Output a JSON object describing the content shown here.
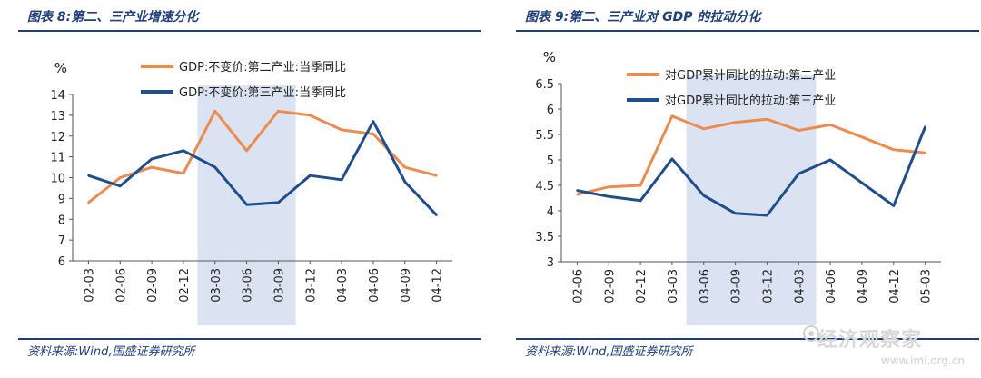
{
  "left": {
    "title": "图表 8:第二、三产业增速分化",
    "source": "资料来源:Wind,国盛证券研究所"
  },
  "right": {
    "title": "图表 9:第二、三产业对 GDP 的拉动分化",
    "source": "资料来源:Wind,国盛证券研究所"
  },
  "watermark": {
    "text": "经济观察家",
    "url": "www.imi.org.cn"
  },
  "colors": {
    "orange": "#ed8b4f",
    "blue": "#1f4e8c",
    "shade": "#dbe3f2",
    "rule": "#1f3f7a"
  },
  "chart_data": [
    {
      "type": "line",
      "ylabel": "%",
      "ylim": [
        6,
        14
      ],
      "yticks": [
        6,
        7,
        8,
        9,
        10,
        11,
        12,
        13,
        14
      ],
      "x": [
        "02-03",
        "02-06",
        "02-09",
        "02-12",
        "03-03",
        "03-06",
        "03-09",
        "03-12",
        "04-03",
        "04-06",
        "04-09",
        "04-12"
      ],
      "shaded_range": [
        "03-03",
        "03-09"
      ],
      "grid": false,
      "legend": "top-left",
      "series": [
        {
          "name": "GDP:不变价:第二产业:当季同比",
          "color": "#ed8b4f",
          "values": [
            8.8,
            10.0,
            10.5,
            10.2,
            13.2,
            11.3,
            13.2,
            13.0,
            12.3,
            12.1,
            10.5,
            10.1
          ]
        },
        {
          "name": "GDP:不变价:第三产业:当季同比",
          "color": "#1f4e8c",
          "values": [
            10.1,
            9.6,
            10.9,
            11.3,
            10.5,
            8.7,
            8.8,
            10.1,
            9.9,
            12.7,
            9.8,
            8.2
          ]
        }
      ]
    },
    {
      "type": "line",
      "ylabel": "%",
      "ylim": [
        3,
        6.5
      ],
      "yticks": [
        3,
        3.5,
        4,
        4.5,
        5,
        5.5,
        6,
        6.5
      ],
      "x": [
        "02-06",
        "02-09",
        "02-12",
        "03-03",
        "03-06",
        "03-09",
        "03-12",
        "04-03",
        "04-06",
        "04-09",
        "04-12",
        "05-03"
      ],
      "shaded_range": [
        "03-06",
        "04-03"
      ],
      "grid": false,
      "legend": "top-left",
      "series": [
        {
          "name": "对GDP累计同比的拉动:第二产业",
          "color": "#ed8b4f",
          "values": [
            4.32,
            4.47,
            4.5,
            5.86,
            5.61,
            5.74,
            5.8,
            5.58,
            5.69,
            5.45,
            5.2,
            5.14
          ]
        },
        {
          "name": "对GDP累计同比的拉动:第三产业",
          "color": "#1f4e8c",
          "values": [
            4.4,
            4.28,
            4.2,
            5.02,
            4.3,
            3.95,
            3.91,
            4.73,
            5.0,
            4.55,
            4.1,
            5.65
          ]
        }
      ]
    }
  ]
}
